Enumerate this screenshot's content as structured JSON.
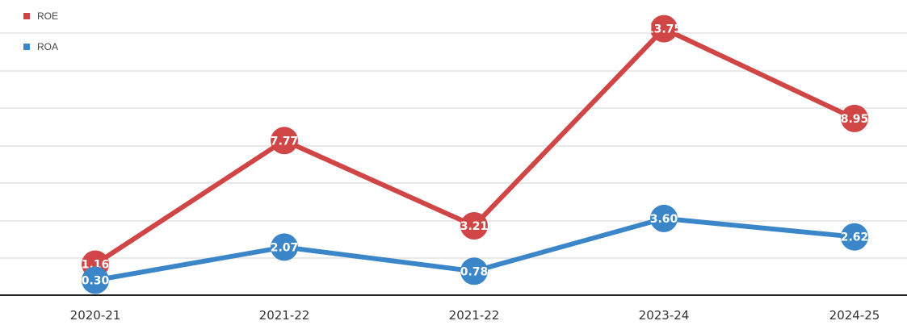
{
  "chart_data": {
    "type": "line",
    "categories": [
      "2020-21",
      "2021-22",
      "2021-22",
      "2023-24",
      "2024-25"
    ],
    "series": [
      {
        "name": "ROE",
        "values": [
          1.16,
          7.77,
          3.21,
          13.75,
          8.95
        ],
        "labels": [
          "1.16",
          "7.77",
          "3.21",
          "13.75",
          "8.95"
        ],
        "color": "#d04545"
      },
      {
        "name": "ROA",
        "values": [
          0.3,
          2.07,
          0.78,
          3.6,
          2.62
        ],
        "labels": [
          "0.30",
          "2.07",
          "0.78",
          "3.60",
          "2.62"
        ],
        "color": "#3a86c8"
      }
    ],
    "ylim": [
      -0.5,
      15.2
    ],
    "grid": true,
    "legend": "top-left",
    "title": "",
    "xlabel": "",
    "ylabel": ""
  }
}
